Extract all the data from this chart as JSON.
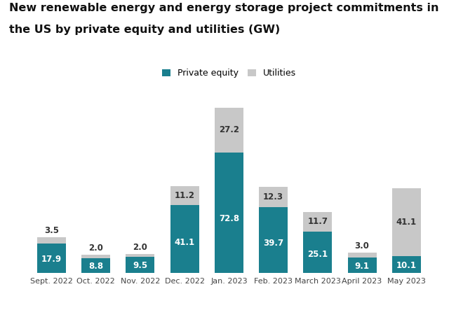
{
  "title_line1": "New renewable energy and energy storage project commitments in",
  "title_line2": "the US by private equity and utilities (GW)",
  "categories": [
    "Sept. 2022",
    "Oct. 2022",
    "Nov. 2022",
    "Dec. 2022",
    "Jan. 2023",
    "Feb. 2023",
    "March 2023",
    "April 2023",
    "May 2023"
  ],
  "private_equity": [
    17.9,
    8.8,
    9.5,
    41.1,
    72.8,
    39.7,
    25.1,
    9.1,
    10.1
  ],
  "utilities": [
    3.5,
    2.0,
    2.0,
    11.2,
    27.2,
    12.3,
    11.7,
    3.0,
    41.1
  ],
  "private_equity_color": "#1A7F8E",
  "utilities_color": "#C8C8C8",
  "background_color": "#FFFFFF",
  "title_fontsize": 11.5,
  "label_fontsize": 8.5,
  "tick_fontsize": 8,
  "legend_fontsize": 9
}
